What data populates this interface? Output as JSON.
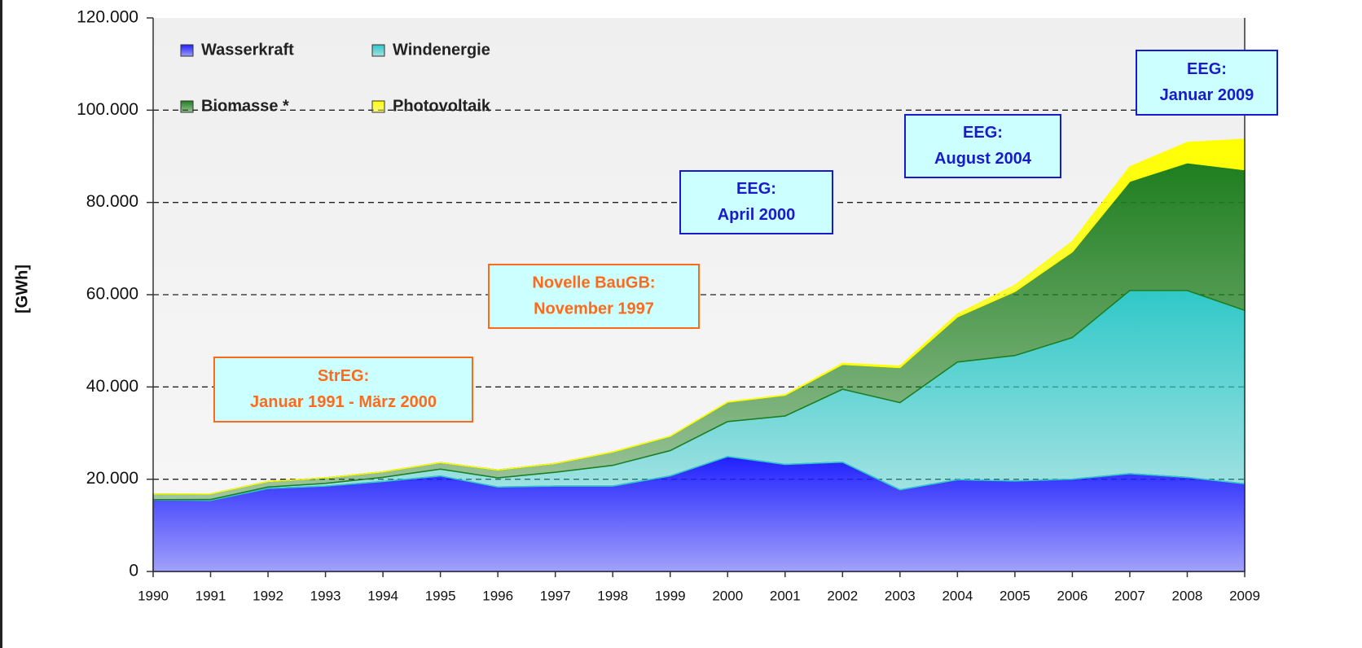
{
  "chart_data": {
    "type": "stacked_area",
    "y_label": "[GWh]",
    "x": [
      1990,
      1991,
      1992,
      1993,
      1994,
      1995,
      1996,
      1997,
      1998,
      1999,
      2000,
      2001,
      2002,
      2003,
      2004,
      2005,
      2006,
      2007,
      2008,
      2009
    ],
    "xlim": [
      1990,
      2009
    ],
    "ylim": [
      0,
      120000
    ],
    "yticks": [
      0,
      {
        "value": 20000,
        "label": "20.000"
      },
      {
        "value": 40000,
        "label": "40.000"
      },
      {
        "value": 60000,
        "label": "60.000"
      },
      {
        "value": 80000,
        "label": "80.000"
      },
      {
        "value": 100000,
        "label": "100.000"
      },
      {
        "value": 120000,
        "label": "120.000"
      }
    ],
    "grid": true,
    "legend": "top-left",
    "series": [
      {
        "name": "Wasserkraft",
        "color": "#2020ff",
        "values": [
          15500,
          15400,
          18000,
          18500,
          19500,
          20700,
          18300,
          18500,
          18500,
          20700,
          24900,
          23200,
          23700,
          17700,
          19900,
          19600,
          20000,
          21200,
          20400,
          19000
        ]
      },
      {
        "name": "Windenergie",
        "color": "#30c8c8",
        "values": [
          70,
          200,
          300,
          600,
          900,
          1500,
          2000,
          3000,
          4500,
          5500,
          7600,
          10500,
          15800,
          18900,
          25500,
          27200,
          30700,
          39700,
          40500,
          37600
        ]
      },
      {
        "name": "Biomasse *",
        "color": "#1e7e1e",
        "values": [
          1200,
          1200,
          1200,
          1200,
          1200,
          1400,
          1700,
          1900,
          2900,
          3100,
          4200,
          4500,
          5400,
          7600,
          9800,
          13900,
          18600,
          23700,
          27700,
          30500
        ]
      },
      {
        "name": "Photovoltaik",
        "color": "#ffff00",
        "values": [
          0,
          0,
          0,
          0,
          0,
          0,
          0,
          10,
          30,
          30,
          60,
          80,
          200,
          300,
          600,
          1300,
          2200,
          3100,
          4400,
          6600
        ]
      }
    ],
    "annotations": [
      {
        "lines": [
          "StrEG:",
          "Januar 1991 - März 2000"
        ],
        "color": "#ff6a1a"
      },
      {
        "lines": [
          "Novelle BauGB:",
          "November 1997"
        ],
        "color": "#ff6a1a"
      },
      {
        "lines": [
          "EEG:",
          "April 2000"
        ],
        "color": "#1a1acc"
      },
      {
        "lines": [
          "EEG:",
          "August  2004"
        ],
        "color": "#1a1acc"
      },
      {
        "lines": [
          "EEG:",
          "Januar 2009"
        ],
        "color": "#1a1acc"
      }
    ]
  }
}
